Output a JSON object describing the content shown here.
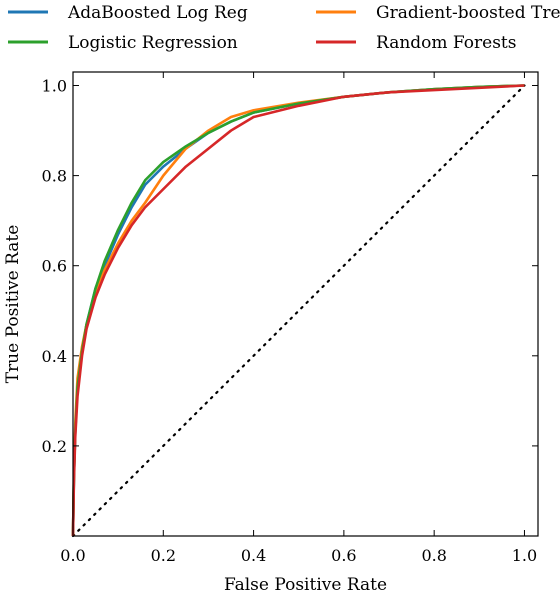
{
  "chart_data": {
    "type": "line",
    "title": "",
    "xlabel": "False Positive Rate",
    "ylabel": "True Positive Rate",
    "xlim": [
      0,
      1.03
    ],
    "ylim": [
      0,
      1.03
    ],
    "x_ticks": [
      0.0,
      0.2,
      0.4,
      0.6,
      0.8,
      1.0
    ],
    "x_tick_labels": [
      "0.0",
      "0.2",
      "0.4",
      "0.6",
      "0.8",
      "1.0"
    ],
    "y_ticks": [
      0.2,
      0.4,
      0.6,
      0.8,
      1.0
    ],
    "y_tick_labels": [
      "0.2",
      "0.4",
      "0.6",
      "0.8",
      "1.0"
    ],
    "grid": false,
    "legend": "top, two columns",
    "reference_line": {
      "style": "dotted",
      "color": "#000000",
      "x": [
        0,
        1
      ],
      "y": [
        0,
        1
      ]
    },
    "series": [
      {
        "name": "AdaBoosted Log Reg",
        "color": "#1f77b4",
        "x": [
          0,
          0.002,
          0.005,
          0.01,
          0.02,
          0.03,
          0.05,
          0.07,
          0.1,
          0.13,
          0.16,
          0.2,
          0.25,
          0.3,
          0.35,
          0.4,
          0.5,
          0.6,
          0.7,
          0.8,
          0.9,
          1.0
        ],
        "y": [
          0,
          0.13,
          0.23,
          0.33,
          0.41,
          0.47,
          0.55,
          0.6,
          0.67,
          0.73,
          0.78,
          0.82,
          0.86,
          0.895,
          0.92,
          0.94,
          0.96,
          0.975,
          0.985,
          0.992,
          0.997,
          1.0
        ]
      },
      {
        "name": "Gradient-boosted Trees",
        "color": "#ff7f0e",
        "x": [
          0,
          0.002,
          0.005,
          0.01,
          0.02,
          0.03,
          0.05,
          0.07,
          0.1,
          0.13,
          0.16,
          0.2,
          0.25,
          0.3,
          0.35,
          0.4,
          0.5,
          0.6,
          0.7,
          0.8,
          0.9,
          1.0
        ],
        "y": [
          0,
          0.14,
          0.25,
          0.35,
          0.42,
          0.47,
          0.54,
          0.59,
          0.65,
          0.7,
          0.74,
          0.8,
          0.86,
          0.9,
          0.93,
          0.945,
          0.962,
          0.975,
          0.985,
          0.992,
          0.997,
          1.0
        ]
      },
      {
        "name": "Logistic Regression",
        "color": "#2ca02c",
        "x": [
          0,
          0.002,
          0.005,
          0.01,
          0.02,
          0.03,
          0.05,
          0.07,
          0.1,
          0.13,
          0.16,
          0.2,
          0.25,
          0.3,
          0.35,
          0.4,
          0.5,
          0.6,
          0.7,
          0.8,
          0.9,
          1.0
        ],
        "y": [
          0,
          0.13,
          0.23,
          0.33,
          0.41,
          0.47,
          0.55,
          0.61,
          0.68,
          0.74,
          0.79,
          0.83,
          0.865,
          0.895,
          0.92,
          0.94,
          0.96,
          0.975,
          0.985,
          0.992,
          0.997,
          1.0
        ]
      },
      {
        "name": "Random Forests",
        "color": "#d62728",
        "x": [
          0,
          0.002,
          0.005,
          0.01,
          0.02,
          0.03,
          0.05,
          0.07,
          0.1,
          0.13,
          0.16,
          0.2,
          0.25,
          0.3,
          0.35,
          0.4,
          0.5,
          0.6,
          0.7,
          0.8,
          0.9,
          1.0
        ],
        "y": [
          0,
          0.12,
          0.22,
          0.31,
          0.4,
          0.46,
          0.53,
          0.58,
          0.64,
          0.69,
          0.73,
          0.77,
          0.82,
          0.86,
          0.9,
          0.93,
          0.955,
          0.975,
          0.985,
          0.99,
          0.995,
          1.0
        ]
      }
    ]
  }
}
